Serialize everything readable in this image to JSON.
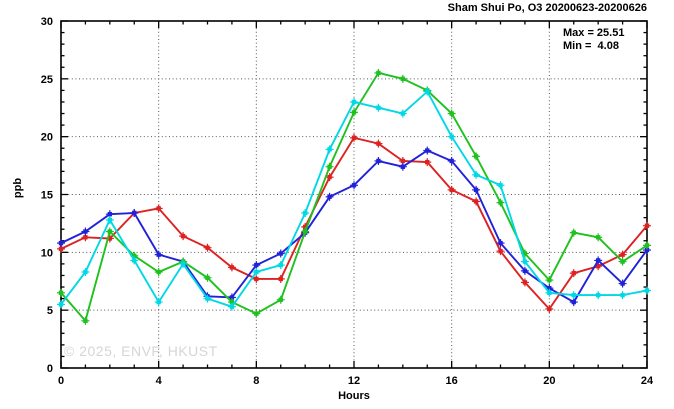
{
  "header": {
    "title": "Sham Shui Po, O3 20200623-20200626"
  },
  "stats": {
    "max_label": "Max = 25.51",
    "min_label": "Min =  4.08"
  },
  "axes": {
    "x_title": "Hours",
    "y_title": "ppb"
  },
  "watermark": {
    "text": "© 2025, ENVF, HKUST"
  },
  "colors": {
    "background": "#ffffff",
    "axis": "#000000",
    "grid": "#555555",
    "series_red": "#dd2222",
    "series_blue": "#2121d9",
    "series_green": "#1fc11f",
    "series_cyan": "#00d8e6",
    "watermark": "#d6d6d6"
  },
  "chart_data": {
    "type": "line",
    "title": "Sham Shui Po, O3 20200623-20200626",
    "xlabel": "Hours",
    "ylabel": "ppb",
    "xlim": [
      0,
      24
    ],
    "ylim": [
      0,
      30
    ],
    "xticks": [
      0,
      4,
      8,
      12,
      16,
      20,
      24
    ],
    "yticks": [
      0,
      5,
      10,
      15,
      20,
      25,
      30
    ],
    "grid": "dotted gridlines at major ticks, boxed axes with inward minor ticks every 1 unit",
    "legend": "none",
    "annotations": {
      "max": 25.51,
      "min": 4.08
    },
    "x": [
      0,
      1,
      2,
      3,
      4,
      5,
      6,
      7,
      8,
      9,
      10,
      11,
      12,
      13,
      14,
      15,
      16,
      17,
      18,
      19,
      20,
      21,
      22,
      23,
      24
    ],
    "series": [
      {
        "name": "red-line",
        "color": "#dd2222",
        "values": [
          10.3,
          11.3,
          11.2,
          13.4,
          13.8,
          11.4,
          10.4,
          8.7,
          7.7,
          7.7,
          12.2,
          16.5,
          19.9,
          19.4,
          17.9,
          17.8,
          15.4,
          14.4,
          10.1,
          7.4,
          5.1,
          8.2,
          8.8,
          9.8,
          12.3
        ]
      },
      {
        "name": "blue-line",
        "color": "#2121d9",
        "values": [
          10.8,
          11.8,
          13.3,
          13.4,
          9.8,
          9.2,
          6.2,
          6.1,
          8.9,
          9.9,
          11.7,
          14.8,
          15.8,
          17.9,
          17.4,
          18.8,
          17.9,
          15.4,
          10.8,
          8.4,
          6.9,
          5.7,
          9.3,
          7.3,
          10.2
        ]
      },
      {
        "name": "green-line",
        "color": "#1fc11f",
        "values": [
          6.5,
          4.08,
          11.8,
          9.7,
          8.3,
          9.2,
          7.8,
          5.7,
          4.7,
          5.9,
          11.8,
          17.4,
          22.1,
          25.51,
          25.0,
          24.0,
          22.0,
          18.3,
          14.3,
          9.9,
          7.6,
          11.7,
          11.3,
          9.2,
          10.6
        ]
      },
      {
        "name": "cyan-line",
        "color": "#00d8e6",
        "values": [
          5.5,
          8.3,
          12.8,
          9.3,
          5.7,
          9.0,
          6.0,
          5.3,
          8.3,
          8.9,
          13.4,
          18.9,
          23.0,
          22.5,
          22.0,
          23.9,
          20.0,
          16.7,
          15.8,
          9.2,
          6.5,
          6.3,
          6.3,
          6.3,
          6.7
        ]
      }
    ]
  }
}
